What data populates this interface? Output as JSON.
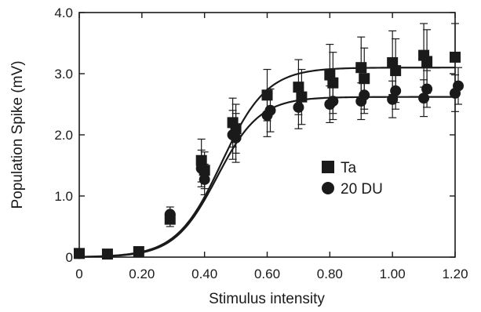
{
  "chart_data": {
    "type": "scatter",
    "xlabel": "Stimulus intensity",
    "ylabel": "Population Spike (mV)",
    "xlim": [
      0,
      1.2
    ],
    "ylim": [
      0,
      4.0
    ],
    "xticks": [
      "0",
      "0.20",
      "0.40",
      "0.60",
      "0.80",
      "1.00",
      "1.20"
    ],
    "yticks": [
      "0",
      "1.0",
      "2.0",
      "3.0",
      "4.0"
    ],
    "grid": false,
    "legend_position": "center-right",
    "series": [
      {
        "name": "Ta",
        "marker": "square",
        "color": "#1a1a1a",
        "points": [
          {
            "x": 0.0,
            "y": 0.06,
            "err": 0.02
          },
          {
            "x": 0.09,
            "y": 0.05,
            "err": 0.02
          },
          {
            "x": 0.19,
            "y": 0.09,
            "err": 0.02
          },
          {
            "x": 0.29,
            "y": 0.62,
            "err": 0.12
          },
          {
            "x": 0.39,
            "y": 1.58,
            "err": 0.35
          },
          {
            "x": 0.4,
            "y": 1.42,
            "err": 0.3
          },
          {
            "x": 0.49,
            "y": 2.2,
            "err": 0.4
          },
          {
            "x": 0.5,
            "y": 2.1,
            "err": 0.4
          },
          {
            "x": 0.6,
            "y": 2.65,
            "err": 0.42
          },
          {
            "x": 0.7,
            "y": 2.78,
            "err": 0.45
          },
          {
            "x": 0.71,
            "y": 2.62,
            "err": 0.45
          },
          {
            "x": 0.8,
            "y": 2.98,
            "err": 0.5
          },
          {
            "x": 0.81,
            "y": 2.85,
            "err": 0.5
          },
          {
            "x": 0.9,
            "y": 3.1,
            "err": 0.5
          },
          {
            "x": 0.91,
            "y": 2.92,
            "err": 0.5
          },
          {
            "x": 1.0,
            "y": 3.18,
            "err": 0.52
          },
          {
            "x": 1.01,
            "y": 3.05,
            "err": 0.52
          },
          {
            "x": 1.1,
            "y": 3.3,
            "err": 0.52
          },
          {
            "x": 1.11,
            "y": 3.2,
            "err": 0.52
          },
          {
            "x": 1.2,
            "y": 3.27,
            "err": 0.55
          }
        ],
        "fit": {
          "max": 3.1,
          "x50": 0.455,
          "slope": 0.072
        }
      },
      {
        "name": "20 DU",
        "marker": "circle",
        "color": "#1a1a1a",
        "points": [
          {
            "x": 0.0,
            "y": 0.06,
            "err": 0.02
          },
          {
            "x": 0.29,
            "y": 0.7,
            "err": 0.12
          },
          {
            "x": 0.39,
            "y": 1.45,
            "err": 0.3
          },
          {
            "x": 0.4,
            "y": 1.27,
            "err": 0.25
          },
          {
            "x": 0.49,
            "y": 2.0,
            "err": 0.4
          },
          {
            "x": 0.5,
            "y": 1.95,
            "err": 0.4
          },
          {
            "x": 0.6,
            "y": 2.32,
            "err": 0.35
          },
          {
            "x": 0.61,
            "y": 2.4,
            "err": 0.35
          },
          {
            "x": 0.7,
            "y": 2.45,
            "err": 0.35
          },
          {
            "x": 0.8,
            "y": 2.5,
            "err": 0.3
          },
          {
            "x": 0.81,
            "y": 2.55,
            "err": 0.3
          },
          {
            "x": 0.9,
            "y": 2.55,
            "err": 0.3
          },
          {
            "x": 0.91,
            "y": 2.65,
            "err": 0.3
          },
          {
            "x": 1.0,
            "y": 2.58,
            "err": 0.3
          },
          {
            "x": 1.01,
            "y": 2.72,
            "err": 0.3
          },
          {
            "x": 1.1,
            "y": 2.6,
            "err": 0.3
          },
          {
            "x": 1.11,
            "y": 2.75,
            "err": 0.3
          },
          {
            "x": 1.2,
            "y": 2.68,
            "err": 0.3
          },
          {
            "x": 1.21,
            "y": 2.8,
            "err": 0.3
          }
        ],
        "fit": {
          "max": 2.62,
          "x50": 0.44,
          "slope": 0.068
        }
      }
    ]
  }
}
